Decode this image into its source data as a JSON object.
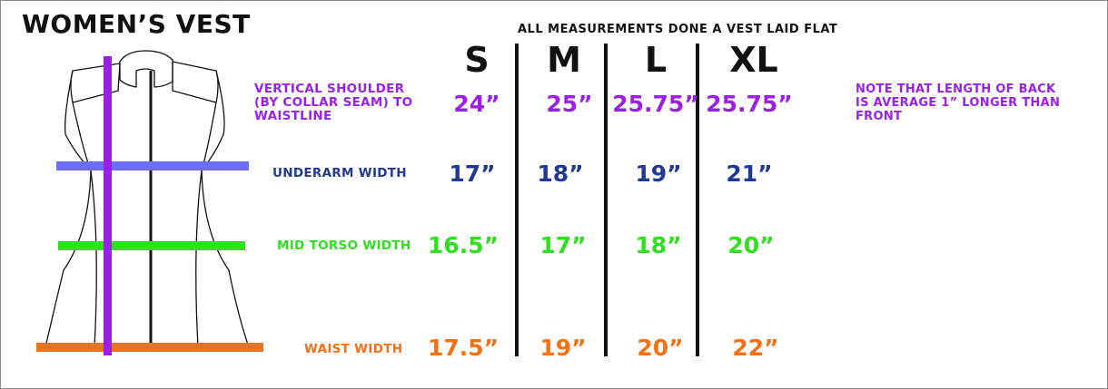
{
  "title": "WOMEN’S VEST",
  "subtitle": "ALL MEASUREMENTS DONE A VEST LAID FLAT",
  "sizes": [
    "S",
    "M",
    "L",
    "XL"
  ],
  "rows": [
    {
      "label_lines": [
        "VERTICAL SHOULDER",
        "(BY COLLAR SEAM) TO",
        "WAISTLINE"
      ],
      "color": "#9b1fe8",
      "values": [
        "24”",
        "25”",
        "25.75”",
        "25.75”"
      ]
    },
    {
      "label_lines": [
        "UNDERARM WIDTH"
      ],
      "color": "#1f3a8f",
      "values": [
        "17”",
        "18”",
        "19”",
        "21”"
      ]
    },
    {
      "label_lines": [
        "MID TORSO WIDTH"
      ],
      "color": "#2ee01e",
      "values": [
        "16.5”",
        "17”",
        "18”",
        "20”"
      ]
    },
    {
      "label_lines": [
        "WAIST WIDTH"
      ],
      "color": "#f07116",
      "values": [
        "17.5”",
        "19”",
        "20”",
        "22”"
      ]
    }
  ],
  "note_lines": [
    "NOTE THAT LENGTH OF BACK",
    "IS AVERAGE 1” LONGER THAN FRONT"
  ],
  "icon": "vest-outline-icon"
}
